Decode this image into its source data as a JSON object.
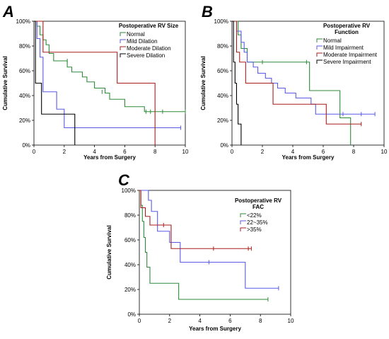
{
  "chart_data": [
    {
      "type": "line",
      "panel": "A",
      "legend_title": [
        "Postoperative RV Size"
      ],
      "xlabel": "Years from Surgery",
      "ylabel": "Cumulative Survival",
      "xlim": [
        0,
        10
      ],
      "ylim": [
        0,
        100
      ],
      "x_ticks": [
        "0",
        "2",
        "4",
        "6",
        "8",
        "10"
      ],
      "y_ticks": [
        "0%",
        "20%",
        "40%",
        "60%",
        "80%",
        "100%"
      ],
      "legend_position": "top-right",
      "series": [
        {
          "name": "Normal",
          "color": "#2e8b3a",
          "x": [
            0,
            0.2,
            0.4,
            0.6,
            0.8,
            1.0,
            1.3,
            2.2,
            2.5,
            3.2,
            3.5,
            4.0,
            4.7,
            5.0,
            6.0,
            7.3,
            8.0,
            10
          ],
          "y": [
            100,
            96,
            89,
            85,
            81,
            74,
            68,
            63,
            59,
            55,
            51,
            46,
            42,
            37,
            31,
            27,
            27,
            27
          ],
          "censored": [
            [
              2.2,
              68
            ],
            [
              4.5,
              43
            ],
            [
              7.4,
              27
            ],
            [
              7.7,
              27
            ],
            [
              8.5,
              27
            ],
            [
              10,
              27
            ]
          ]
        },
        {
          "name": "Mild Dilation",
          "color": "#5a5ae6",
          "x": [
            0,
            0.2,
            0.4,
            0.6,
            1.5,
            2.0,
            9.7
          ],
          "y": [
            100,
            86,
            71,
            43,
            29,
            14,
            14
          ],
          "censored": [
            [
              9.7,
              14
            ]
          ]
        },
        {
          "name": "Moderate Dilation",
          "color": "#a81e1e",
          "x": [
            0,
            0.6,
            5.5,
            8.0,
            8.0
          ],
          "y": [
            100,
            75,
            50,
            50,
            0
          ],
          "censored": []
        },
        {
          "name": "Severe Dilation",
          "color": "#000000",
          "x": [
            0,
            0.1,
            0.5,
            2.7,
            2.7
          ],
          "y": [
            100,
            50,
            25,
            25,
            0
          ],
          "censored": []
        }
      ]
    },
    {
      "type": "line",
      "panel": "B",
      "legend_title": [
        "Postoperative RV",
        "Function"
      ],
      "xlabel": "Years from Surgery",
      "ylabel": "Cumulative Survival",
      "xlim": [
        0,
        10
      ],
      "ylim": [
        0,
        100
      ],
      "x_ticks": [
        "0",
        "2",
        "4",
        "6",
        "8",
        "10"
      ],
      "y_ticks": [
        "0%",
        "20%",
        "40%",
        "60%",
        "80%",
        "100%"
      ],
      "legend_position": "top-right",
      "series": [
        {
          "name": "Normal",
          "color": "#2e8b3a",
          "x": [
            0,
            0.4,
            0.6,
            1.0,
            5.1,
            7.1,
            7.8,
            7.8
          ],
          "y": [
            100,
            89,
            78,
            67,
            44,
            22,
            22,
            0
          ],
          "censored": [
            [
              2.0,
              67
            ],
            [
              4.9,
              67
            ]
          ]
        },
        {
          "name": "Mild Impairment",
          "color": "#5a5ae6",
          "x": [
            0,
            0.3,
            0.6,
            0.8,
            1.0,
            1.4,
            1.7,
            2.2,
            2.6,
            3.0,
            3.5,
            4.2,
            5.2,
            5.5,
            9.4
          ],
          "y": [
            100,
            92,
            83,
            75,
            67,
            63,
            58,
            54,
            50,
            46,
            42,
            38,
            33,
            25,
            25
          ],
          "censored": [
            [
              7.3,
              25
            ],
            [
              8.5,
              25
            ],
            [
              9.4,
              25
            ]
          ]
        },
        {
          "name": "Moderate Impairment",
          "color": "#a81e1e",
          "x": [
            0,
            0.3,
            0.5,
            0.9,
            2.4,
            2.7,
            3.9,
            6.2,
            8.5
          ],
          "y": [
            100,
            75,
            67,
            50,
            50,
            33,
            33,
            17,
            17
          ],
          "censored": [
            [
              8.5,
              17
            ]
          ]
        },
        {
          "name": "Severe Impairment",
          "color": "#000000",
          "x": [
            0,
            0.1,
            0.2,
            0.3,
            0.4,
            0.6,
            0.6
          ],
          "y": [
            100,
            67,
            50,
            33,
            17,
            17,
            0
          ],
          "censored": []
        }
      ]
    },
    {
      "type": "line",
      "panel": "C",
      "legend_title": [
        "Postoperative RV",
        "FAC"
      ],
      "xlabel": "Years from Surgery",
      "ylabel": "Cumulative Survival",
      "xlim": [
        0,
        10
      ],
      "ylim": [
        0,
        100
      ],
      "x_ticks": [
        "0",
        "2",
        "4",
        "6",
        "8",
        "10"
      ],
      "y_ticks": [
        "0%",
        "20%",
        "40%",
        "60%",
        "80%",
        "100%"
      ],
      "legend_position": "top-right",
      "series": [
        {
          "name": "<22%",
          "color": "#2e8b3a",
          "x": [
            0,
            0.1,
            0.2,
            0.3,
            0.4,
            0.5,
            0.7,
            2.6,
            8.5
          ],
          "y": [
            100,
            88,
            75,
            62,
            50,
            38,
            25,
            12,
            12
          ],
          "censored": [
            [
              8.5,
              12
            ]
          ]
        },
        {
          "name": "22~35%",
          "color": "#5a5ae6",
          "x": [
            0,
            0.6,
            0.8,
            1.2,
            2.0,
            2.7,
            7.0,
            9.2
          ],
          "y": [
            100,
            92,
            83,
            67,
            58,
            42,
            21,
            21
          ],
          "censored": [
            [
              4.6,
              42
            ],
            [
              9.2,
              21
            ]
          ]
        },
        {
          "name": ">35%",
          "color": "#a81e1e",
          "x": [
            0,
            0.1,
            0.4,
            0.7,
            2.1,
            7.4
          ],
          "y": [
            100,
            86,
            79,
            72,
            53,
            53
          ],
          "censored": [
            [
              1.6,
              72
            ],
            [
              4.9,
              53
            ],
            [
              7.2,
              53
            ],
            [
              7.4,
              53
            ]
          ]
        }
      ]
    }
  ]
}
